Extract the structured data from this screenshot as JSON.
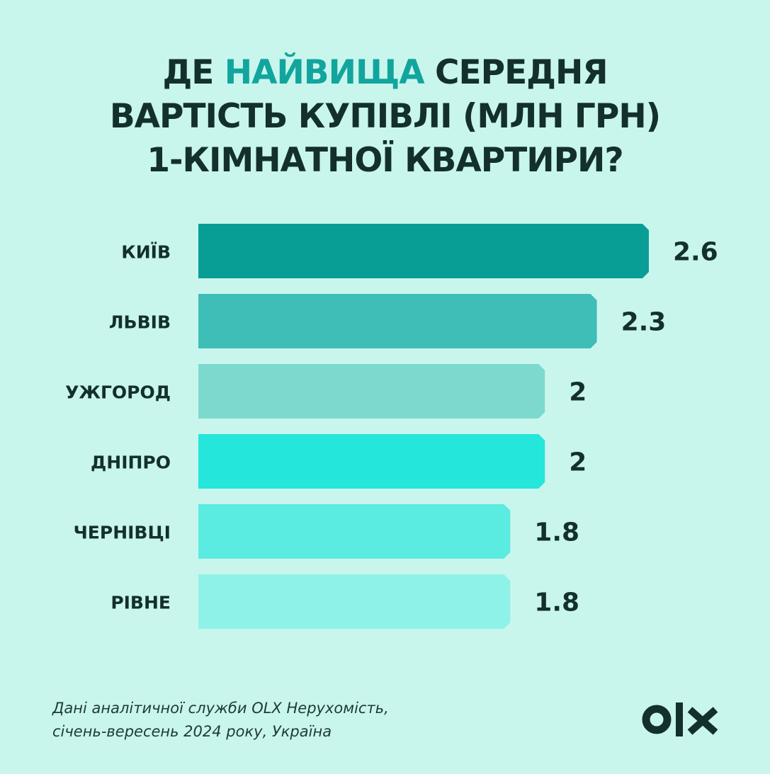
{
  "header": {
    "title_line1_pre": "ДЕ ",
    "title_line1_accent": "НАЙВИЩА",
    "title_line1_post": " СЕРЕДНЯ",
    "title_line2": "ВАРТІСТЬ КУПІВЛІ (МЛН ГРН)",
    "title_line3": "1-КІМНАТНОЇ КВАРТИРИ?"
  },
  "chart_data": {
    "type": "bar",
    "orientation": "horizontal",
    "title": "ДЕ НАЙВИЩА СЕРЕДНЯ ВАРТІСТЬ КУПІВЛІ (МЛН ГРН) 1-КІМНАТНОЇ КВАРТИРИ?",
    "categories": [
      "КИЇВ",
      "ЛЬВІВ",
      "УЖГОРОД",
      "ДНІПРО",
      "ЧЕРНІВЦІ",
      "РІВНЕ"
    ],
    "values": [
      2.6,
      2.3,
      2,
      2,
      1.8,
      1.8
    ],
    "value_labels": [
      "2.6",
      "2.3",
      "2",
      "2",
      "1.8",
      "1.8"
    ],
    "colors": [
      "#089e96",
      "#3ebeb6",
      "#7dd9cd",
      "#24e6da",
      "#5aebe1",
      "#8ff2e8"
    ],
    "grid": false,
    "legend": "none"
  },
  "footer": {
    "source_line1": "Дані аналітичної служби OLX Нерухомість,",
    "source_line2": "січень-вересень 2024 року, Україна"
  },
  "brand": {
    "logo_icon": "olx-logo-icon",
    "logo_color": "#13302c",
    "background": "#c9f6ec"
  }
}
